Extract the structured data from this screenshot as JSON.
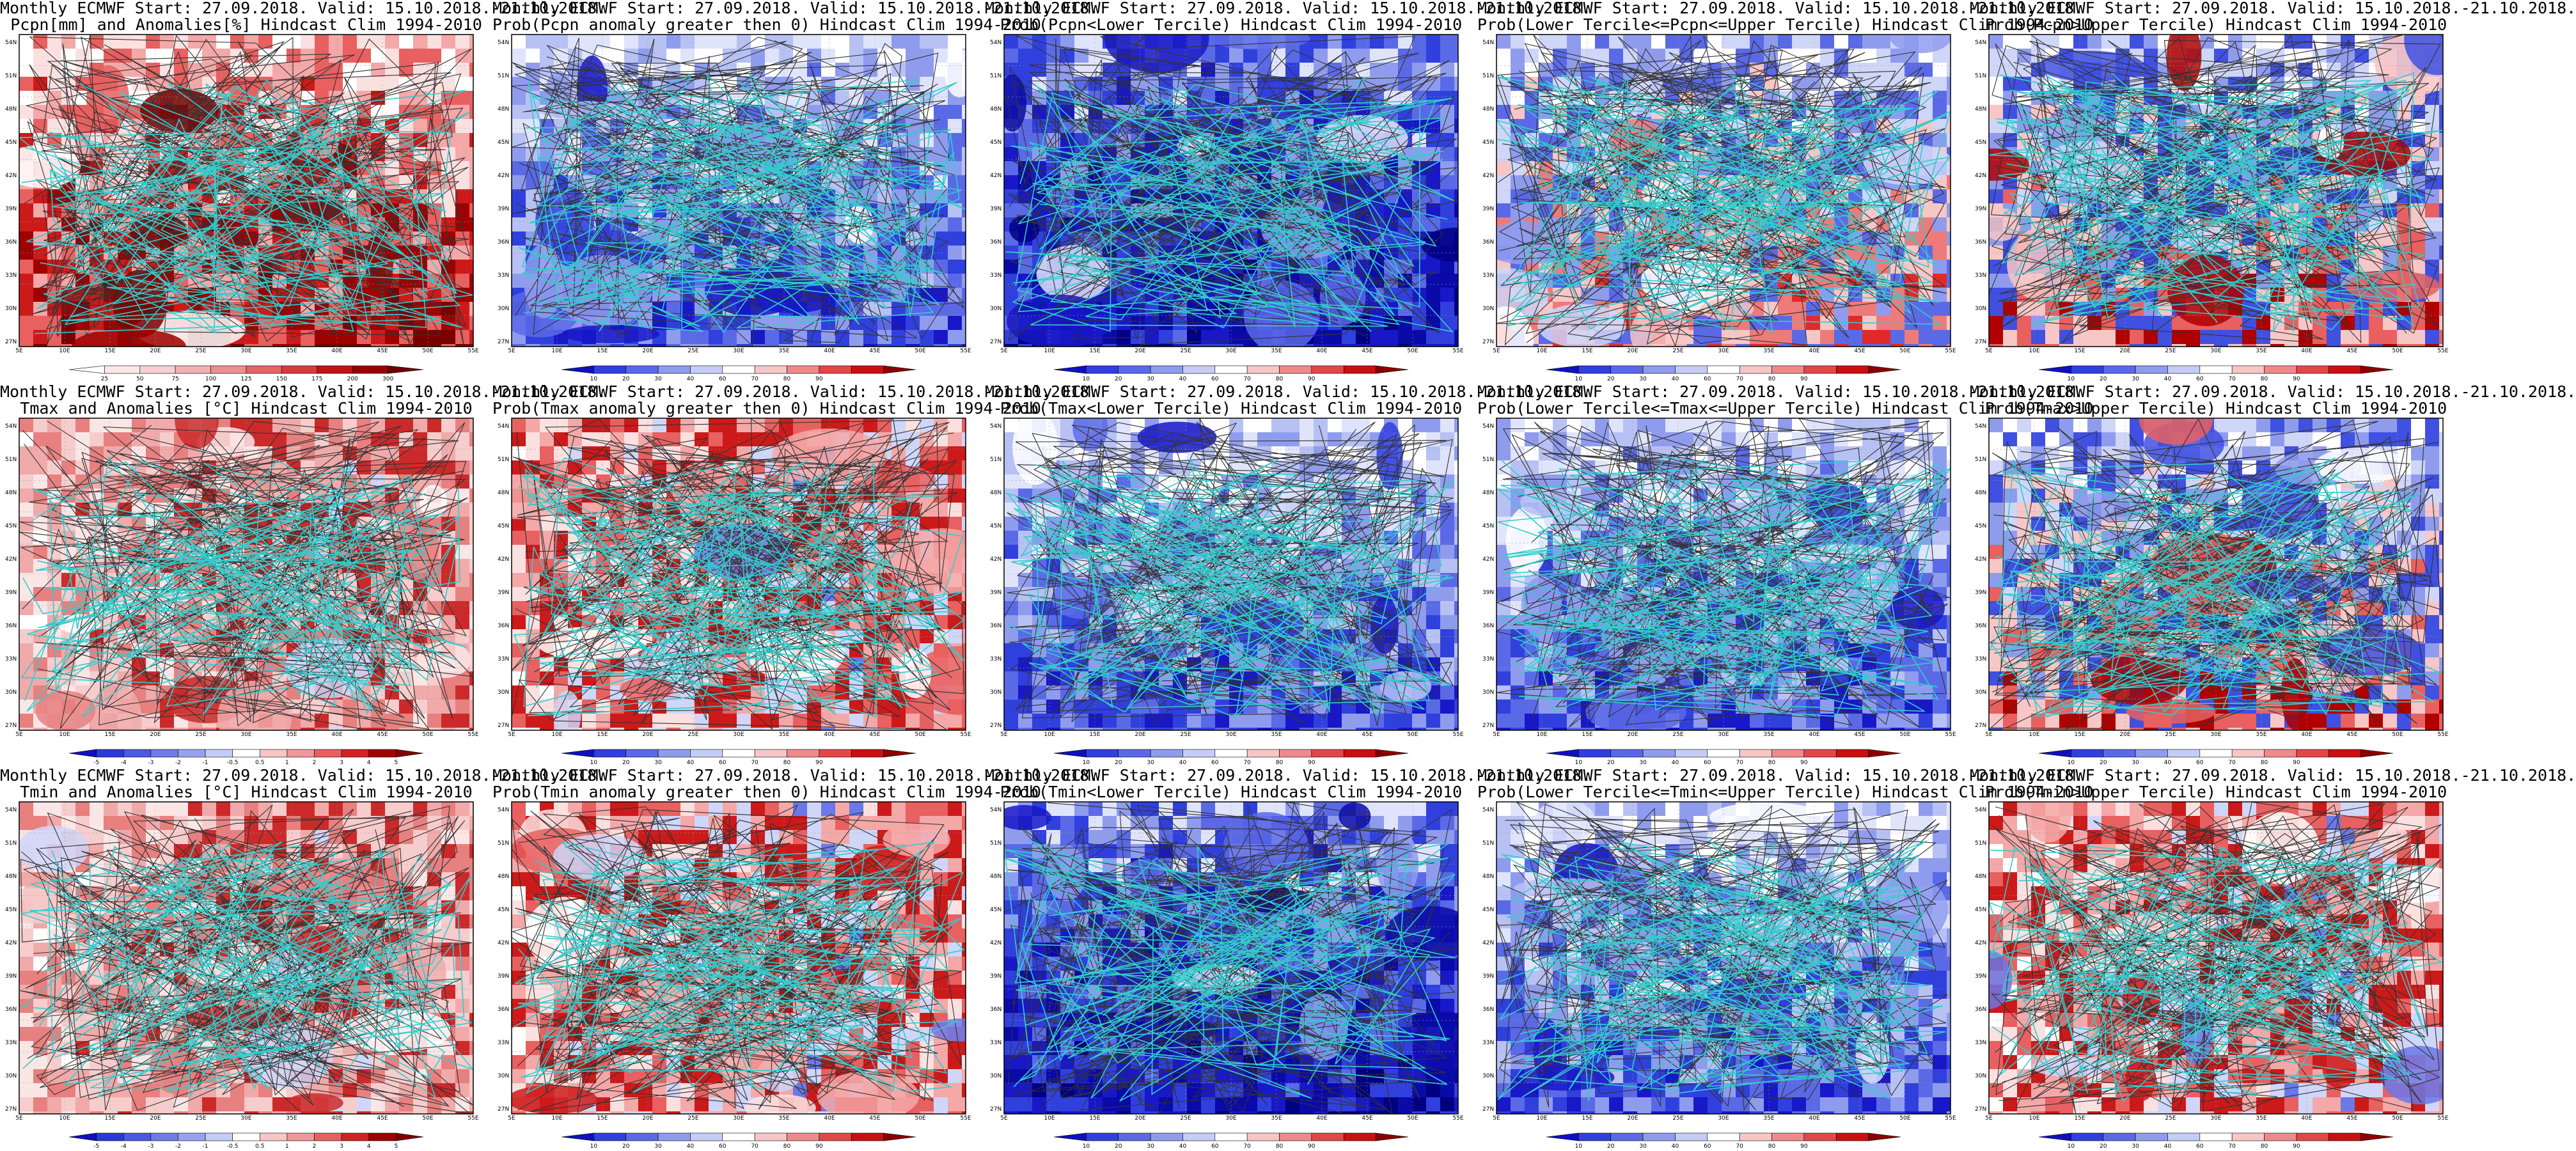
{
  "axes": {
    "lat_labels": [
      "54N",
      "51N",
      "48N",
      "45N",
      "42N",
      "39N",
      "36N",
      "33N",
      "30N",
      "27N"
    ],
    "lon_labels": [
      "5E",
      "10E",
      "15E",
      "20E",
      "25E",
      "30E",
      "35E",
      "40E",
      "45E",
      "50E",
      "55E"
    ]
  },
  "colorbars": {
    "precip": [
      "25",
      "50",
      "75",
      "100",
      "125",
      "150",
      "175",
      "200",
      "300"
    ],
    "prob": [
      "10",
      "20",
      "30",
      "40",
      "60",
      "70",
      "80",
      "90"
    ],
    "anom": [
      "-5",
      "-4",
      "-3",
      "-2",
      "-1",
      "-0.5",
      "0.5",
      "1",
      "2",
      "3",
      "4",
      "5"
    ]
  },
  "colors": {
    "coast": "#33cccc",
    "contour": "#333333",
    "strong_blue": "#1414cc",
    "strong_red": "#8a0000"
  },
  "panels": [
    {
      "title1": "Monthly ECMWF Start: 27.09.2018. Valid: 15.10.2018.-21.10.2018.",
      "title2": "Pcpn[mm] and Anomalies[%] Hindcast Clim 1994-2010",
      "scheme": "precip",
      "bar": "precip"
    },
    {
      "title1": "Monthly ECMWF Start: 27.09.2018. Valid: 15.10.2018.-21.10.2018.",
      "title2": "Prob(Pcpn anomaly greater then 0) Hindcast Clim 1994-2010",
      "scheme": "blue",
      "bar": "prob"
    },
    {
      "title1": "Monthly ECMWF Start: 27.09.2018. Valid: 15.10.2018.-21.10.2018.",
      "title2": "Prob(Pcpn<Lower Tercile) Hindcast Clim 1994-2010",
      "scheme": "deepblue",
      "bar": "prob"
    },
    {
      "title1": "Monthly ECMWF Start: 27.09.2018. Valid: 15.10.2018.-21.10.2018.",
      "title2": "Prob(Lower Tercile<=Pcpn<=Upper Tercile) Hindcast Clim 1994-2010",
      "scheme": "mixed",
      "bar": "prob"
    },
    {
      "title1": "Monthly ECMWF Start: 27.09.2018. Valid: 15.10.2018.-21.10.2018.",
      "title2": "Prob(Pcpn>Upper Tercile) Hindcast Clim 1994-2010",
      "scheme": "bluered",
      "bar": "prob"
    },
    {
      "title1": "Monthly ECMWF Start: 27.09.2018. Valid: 15.10.2018.-21.10.2018.",
      "title2": "Tmax and Anomalies [°C] Hindcast Clim 1994-2010",
      "scheme": "lightred",
      "bar": "anom"
    },
    {
      "title1": "Monthly ECMWF Start: 27.09.2018. Valid: 15.10.2018.-21.10.2018.",
      "title2": "Prob(Tmax anomaly greater then 0) Hindcast Clim 1994-2010",
      "scheme": "redmix",
      "bar": "prob"
    },
    {
      "title1": "Monthly ECMWF Start: 27.09.2018. Valid: 15.10.2018.-21.10.2018.",
      "title2": "Prob(Tmax<Lower Tercile) Hindcast Clim 1994-2010",
      "scheme": "blue",
      "bar": "prob"
    },
    {
      "title1": "Monthly ECMWF Start: 27.09.2018. Valid: 15.10.2018.-21.10.2018.",
      "title2": "Prob(Lower Tercile<=Tmax<=Upper Tercile) Hindcast Clim 1994-2010",
      "scheme": "blue",
      "bar": "prob"
    },
    {
      "title1": "Monthly ECMWF Start: 27.09.2018. Valid: 15.10.2018.-21.10.2018.",
      "title2": "Prob(Tmax>Upper Tercile) Hindcast Clim 1994-2010",
      "scheme": "bluered",
      "bar": "prob"
    },
    {
      "title1": "Monthly ECMWF Start: 27.09.2018. Valid: 15.10.2018.-21.10.2018.",
      "title2": "Tmin and Anomalies [°C] Hindcast Clim 1994-2010",
      "scheme": "lightred",
      "bar": "anom"
    },
    {
      "title1": "Monthly ECMWF Start: 27.09.2018. Valid: 15.10.2018.-21.10.2018.",
      "title2": "Prob(Tmin anomaly greater then 0) Hindcast Clim 1994-2010",
      "scheme": "redmix",
      "bar": "prob"
    },
    {
      "title1": "Monthly ECMWF Start: 27.09.2018. Valid: 15.10.2018.-21.10.2018.",
      "title2": "Prob(Tmin<Lower Tercile) Hindcast Clim 1994-2010",
      "scheme": "deepblue",
      "bar": "prob"
    },
    {
      "title1": "Monthly ECMWF Start: 27.09.2018. Valid: 15.10.2018.-21.10.2018.",
      "title2": "Prob(Lower Tercile<=Tmin<=Upper Tercile) Hindcast Clim 1994-2010",
      "scheme": "blue",
      "bar": "prob"
    },
    {
      "title1": "Monthly ECMWF Start: 27.09.2018. Valid: 15.10.2018.-21.10.2018.",
      "title2": "Prob(Tmin>Upper Tercile) Hindcast Clim 1994-2010",
      "scheme": "redmix",
      "bar": "prob"
    }
  ]
}
